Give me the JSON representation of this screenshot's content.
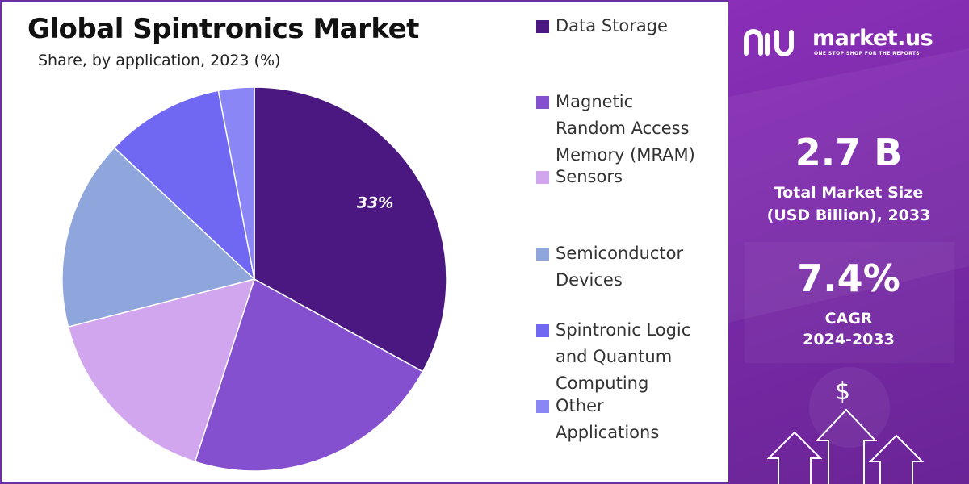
{
  "chart_data": {
    "type": "pie",
    "title": "Global Spintronics Market",
    "subtitle": "Share, by application, 2023 (%)",
    "categories": [
      "Data Storage",
      "Magnetic Random Access Memory (MRAM)",
      "Sensors",
      "Semiconductor Devices",
      "Spintronic Logic and Quantum Computing",
      "Other Applications"
    ],
    "values": [
      33,
      22,
      16,
      16,
      10,
      3
    ],
    "colors": [
      "#4b1780",
      "#8550cf",
      "#d2a6ee",
      "#8ea6db",
      "#7068f2",
      "#8b86f6"
    ],
    "data_labels": [
      "33%",
      "",
      "",
      "",
      "",
      ""
    ],
    "legend_position": "right"
  },
  "legend_lines": [
    [
      "Data Storage"
    ],
    [
      "Magnetic",
      "Random Access",
      "Memory (MRAM)"
    ],
    [
      "Sensors"
    ],
    [
      "Semiconductor",
      "Devices"
    ],
    [
      "Spintronic Logic",
      "and Quantum",
      "Computing"
    ],
    [
      "Other",
      "Applications"
    ]
  ],
  "brand": {
    "name": "market.us",
    "tagline": "ONE STOP SHOP FOR THE REPORTS"
  },
  "stats": {
    "market_size_value": "2.7 B",
    "market_size_label_line1": "Total Market Size",
    "market_size_label_line2": "(USD Billion), 2033",
    "cagr_value": "7.4%",
    "cagr_label_line1": "CAGR",
    "cagr_label_line2": "2024-2033"
  },
  "icons": {
    "logo": "market-us-logo-icon",
    "dollar": "dollar-sign-icon",
    "arrows": "growth-arrows-icon"
  }
}
